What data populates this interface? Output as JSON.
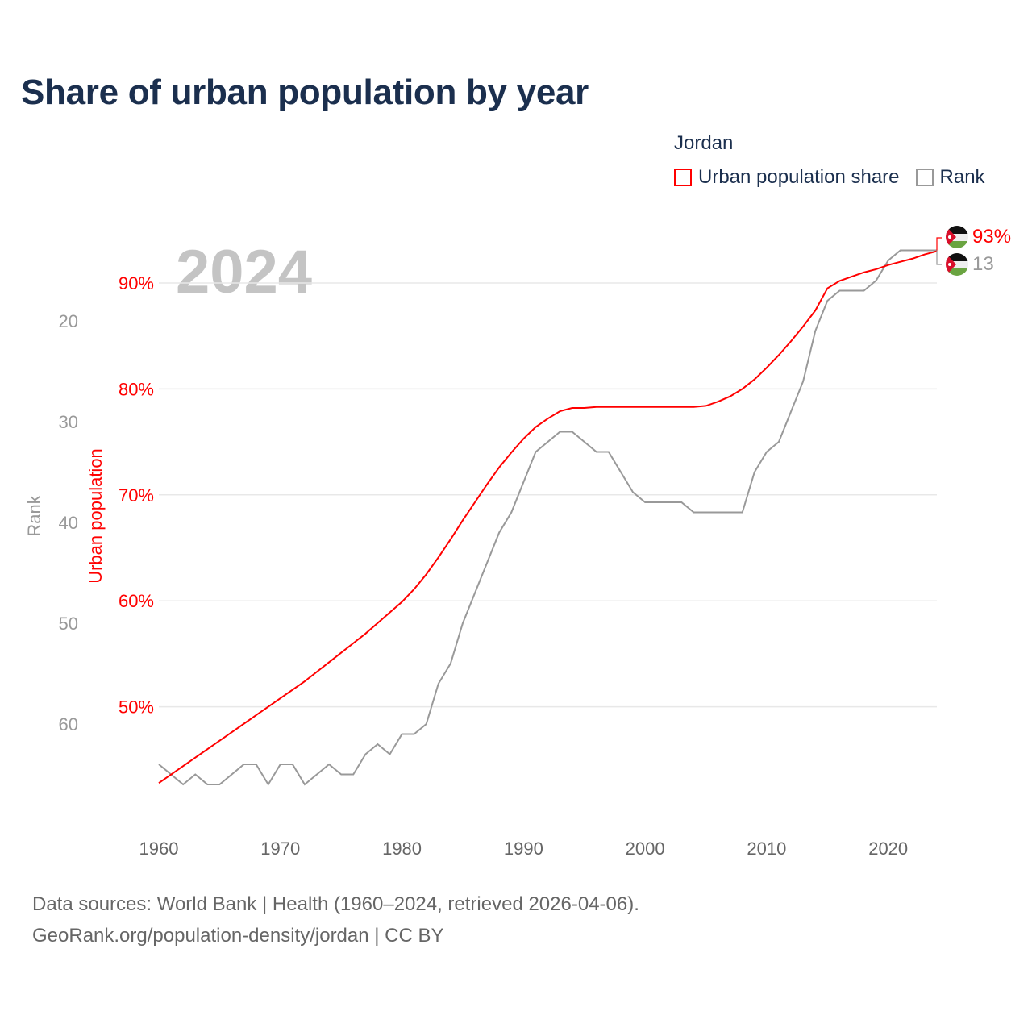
{
  "title": "Share of urban population by year",
  "legend": {
    "title": "Jordan",
    "items": [
      {
        "label": "Urban population share",
        "color": "#ff0000"
      },
      {
        "label": "Rank",
        "color": "#999999"
      }
    ]
  },
  "source": {
    "line1": "Data sources: World Bank | Health (1960–2024, retrieved 2026-04-06).",
    "line2": "GeoRank.org/population-density/jordan | CC BY"
  },
  "chart_data": {
    "type": "line",
    "title": "Share of urban population by year",
    "highlight_year_label": "2024",
    "xlabel": "",
    "ylabel_left": "Urban population",
    "ylabel_rank": "Rank",
    "xlim": [
      1960,
      2024
    ],
    "ylim_percent": [
      38,
      95
    ],
    "ylim_rank": [
      68,
      10
    ],
    "x_ticks": [
      "1960",
      "1970",
      "1980",
      "1990",
      "2000",
      "2010",
      "2020"
    ],
    "x_tick_values": [
      1960,
      1970,
      1980,
      1990,
      2000,
      2010,
      2020
    ],
    "percent_ticks": [
      "50%",
      "60%",
      "70%",
      "80%",
      "90%"
    ],
    "percent_tick_values": [
      50,
      60,
      70,
      80,
      90
    ],
    "rank_ticks": [
      "20",
      "30",
      "40",
      "50",
      "60"
    ],
    "rank_tick_values": [
      20,
      30,
      40,
      50,
      60
    ],
    "grid": true,
    "legend_position": "top-right",
    "end_labels": {
      "percent": "93%",
      "rank": "13"
    },
    "flag_icon": "jordan-flag",
    "x": [
      1960,
      1961,
      1962,
      1963,
      1964,
      1965,
      1966,
      1967,
      1968,
      1969,
      1970,
      1971,
      1972,
      1973,
      1974,
      1975,
      1976,
      1977,
      1978,
      1979,
      1980,
      1981,
      1982,
      1983,
      1984,
      1985,
      1986,
      1987,
      1988,
      1989,
      1990,
      1991,
      1992,
      1993,
      1994,
      1995,
      1996,
      1997,
      1998,
      1999,
      2000,
      2001,
      2002,
      2003,
      2004,
      2005,
      2006,
      2007,
      2008,
      2009,
      2010,
      2011,
      2012,
      2013,
      2014,
      2015,
      2016,
      2017,
      2018,
      2019,
      2020,
      2021,
      2022,
      2023,
      2024
    ],
    "series": [
      {
        "name": "Urban population share",
        "axis": "percent",
        "color": "#ff0000",
        "values": [
          42.8,
          43.6,
          44.4,
          45.2,
          46.0,
          46.8,
          47.6,
          48.4,
          49.2,
          50.0,
          50.8,
          51.6,
          52.4,
          53.3,
          54.2,
          55.1,
          56.0,
          56.9,
          57.9,
          58.9,
          59.9,
          61.1,
          62.5,
          64.1,
          65.8,
          67.6,
          69.3,
          71.0,
          72.6,
          74.0,
          75.3,
          76.4,
          77.2,
          77.9,
          78.2,
          78.2,
          78.3,
          78.3,
          78.3,
          78.3,
          78.3,
          78.3,
          78.3,
          78.3,
          78.3,
          78.4,
          78.8,
          79.3,
          80.0,
          80.9,
          82.0,
          83.2,
          84.5,
          85.9,
          87.4,
          89.5,
          90.2,
          90.6,
          91.0,
          91.3,
          91.7,
          92.0,
          92.3,
          92.7,
          93.0
        ]
      },
      {
        "name": "Rank",
        "axis": "rank",
        "color": "#999999",
        "values": [
          64,
          65,
          66,
          65,
          66,
          66,
          65,
          64,
          64,
          66,
          64,
          64,
          66,
          65,
          64,
          65,
          65,
          63,
          62,
          63,
          61,
          61,
          60,
          56,
          54,
          50,
          47,
          44,
          41,
          39,
          36,
          33,
          32,
          31,
          31,
          32,
          33,
          33,
          35,
          37,
          38,
          38,
          38,
          38,
          39,
          39,
          39,
          39,
          39,
          35,
          33,
          32,
          29,
          26,
          21,
          18,
          17,
          17,
          17,
          16,
          14,
          13,
          13,
          13,
          13
        ]
      }
    ]
  }
}
